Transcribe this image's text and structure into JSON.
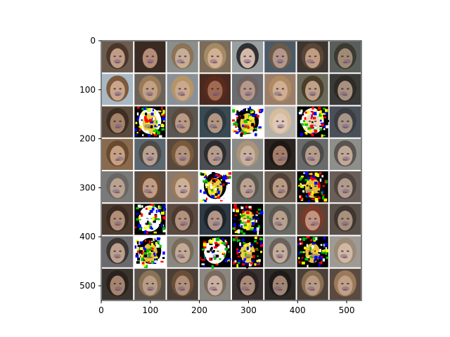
{
  "figure": {
    "grid": {
      "rows": 8,
      "cols": 8,
      "extent": [
        0,
        530
      ]
    },
    "x_ticks": [
      "0",
      "100",
      "200",
      "300",
      "400",
      "500"
    ],
    "y_ticks": [
      "0",
      "100",
      "200",
      "300",
      "400",
      "500"
    ],
    "palette": {
      "tile_dark": "#3a2a22",
      "tile_mid": "#7a6352",
      "tile_light": "#b79a82",
      "skin": "#c9a086",
      "hair_dark": "#2a1a12",
      "hair_light": "#cdb38a",
      "gap": "#ffffff",
      "axis": "#000000"
    },
    "cells": [
      [
        {
          "bg": "#6b5a4e",
          "face": "#c09b86",
          "hair": "#4a362a"
        },
        {
          "bg": "#3a2a24",
          "face": "#b58c78",
          "hair": "#3b2a21"
        },
        {
          "bg": "#8a8e8c",
          "face": "#c7ad97",
          "hair": "#8c7355"
        },
        {
          "bg": "#7b6b58",
          "face": "#d3b094",
          "hair": "#a58a66"
        },
        {
          "bg": "#9aa0a2",
          "face": "#d2b9a8",
          "hair": "#303034"
        },
        {
          "bg": "#4b5a66",
          "face": "#b3978a",
          "hair": "#6c5a48"
        },
        {
          "bg": "#3e3530",
          "face": "#bf9c82",
          "hair": "#5a4636"
        },
        {
          "bg": "#5a5e5a",
          "face": "#a08a76",
          "hair": "#3a3a32"
        }
      ],
      [
        {
          "bg": "#a8b8c4",
          "face": "#caa58c",
          "hair": "#7b5a3c"
        },
        {
          "bg": "#6a6258",
          "face": "#c2a086",
          "hair": "#9a7a58"
        },
        {
          "bg": "#8a9098",
          "face": "#caa88e",
          "hair": "#b59466"
        },
        {
          "bg": "#4a2a20",
          "face": "#a06a52",
          "hair": "#5a2a1a"
        },
        {
          "bg": "#6a6c70",
          "face": "#b6988a",
          "hair": "#6e6260"
        },
        {
          "bg": "#9a7e6a",
          "face": "#d0ae94",
          "hair": "#b08a62"
        },
        {
          "bg": "#6a6a5a",
          "face": "#bfa088",
          "hair": "#4a3e2a"
        },
        {
          "bg": "#3a3a38",
          "face": "#a89080",
          "hair": "#2e2a26"
        }
      ],
      [
        {
          "bg": "#5a4a3e",
          "face": "#a5826a",
          "hair": "#3e2e22"
        },
        {
          "bg": "#000000",
          "face": "#e8d040",
          "hair": "#ffffff",
          "noise": true
        },
        {
          "bg": "#5a5652",
          "face": "#b89a86",
          "hair": "#5a4a3c"
        },
        {
          "bg": "#3a4a52",
          "face": "#b39682",
          "hair": "#2e3a40"
        },
        {
          "bg": "#ffffff",
          "face": "#e8d040",
          "hair": "#000000",
          "noise": true
        },
        {
          "bg": "#b4b0ac",
          "face": "#e0c8b6",
          "hair": "#d4bc9c"
        },
        {
          "bg": "#000000",
          "face": "#f0d8b8",
          "hair": "#ffffff",
          "noise": true
        },
        {
          "bg": "#4a5058",
          "face": "#a8968a",
          "hair": "#3a3e42"
        }
      ],
      [
        {
          "bg": "#8a6a4e",
          "face": "#c5a084",
          "hair": "#6a4a2e"
        },
        {
          "bg": "#5a6670",
          "face": "#b8a092",
          "hair": "#4e4a44"
        },
        {
          "bg": "#5a4a3e",
          "face": "#b2927c",
          "hair": "#7a5a3a"
        },
        {
          "bg": "#4a4e52",
          "face": "#b59c8c",
          "hair": "#2e2e30"
        },
        {
          "bg": "#8a8a86",
          "face": "#c8b09e",
          "hair": "#a89478"
        },
        {
          "bg": "#2a2420",
          "face": "#a27e6a",
          "hair": "#1e1814"
        },
        {
          "bg": "#6a6a6a",
          "face": "#b49c8c",
          "hair": "#4a4a48"
        },
        {
          "bg": "#8e8e8a",
          "face": "#c0a898",
          "hair": "#5a5450"
        }
      ],
      [
        {
          "bg": "#7a7a78",
          "face": "#baa290",
          "hair": "#6a6664"
        },
        {
          "bg": "#5a4a40",
          "face": "#c09c84",
          "hair": "#6a4a32"
        },
        {
          "bg": "#8a7a6e",
          "face": "#cdb09a",
          "hair": "#9a7a5a"
        },
        {
          "bg": "#ffffff",
          "face": "#e8d040",
          "hair": "#000000",
          "noise": true
        },
        {
          "bg": "#6a6a66",
          "face": "#bca290",
          "hair": "#5a564e"
        },
        {
          "bg": "#6a5e52",
          "face": "#b89a84",
          "hair": "#4e4036"
        },
        {
          "bg": "#000000",
          "face": "#e8c040",
          "hair": "#101010",
          "noise": true
        },
        {
          "bg": "#6a5e58",
          "face": "#b09a8c",
          "hair": "#4e4440"
        }
      ],
      [
        {
          "bg": "#4a3a30",
          "face": "#b08e78",
          "hair": "#3a2a20"
        },
        {
          "bg": "#000000",
          "face": "#ffffff",
          "hair": "#ffffff",
          "noise": true
        },
        {
          "bg": "#5a4a42",
          "face": "#b2927e",
          "hair": "#4a3a30"
        },
        {
          "bg": "#2e3a44",
          "face": "#b0968a",
          "hair": "#1e242a"
        },
        {
          "bg": "#000000",
          "face": "#e8d040",
          "hair": "#000000",
          "noise": true
        },
        {
          "bg": "#6a6a64",
          "face": "#b8a08e",
          "hair": "#5a5650"
        },
        {
          "bg": "#5a4236",
          "face": "#c09480",
          "hair": "#7a3a2a"
        },
        {
          "bg": "#5a504a",
          "face": "#a8907e",
          "hair": "#3e3630"
        }
      ],
      [
        {
          "bg": "#6a6a6e",
          "face": "#bca08c",
          "hair": "#3a3634"
        },
        {
          "bg": "#ffffff",
          "face": "#e8c040",
          "hair": "#000000",
          "noise": true
        },
        {
          "bg": "#8a8680",
          "face": "#c2aa96",
          "hair": "#7a6c5a"
        },
        {
          "bg": "#000000",
          "face": "#ffffff",
          "hair": "#ffffff",
          "noise": true
        },
        {
          "bg": "#000000",
          "face": "#e8d040",
          "hair": "#000000",
          "noise": true
        },
        {
          "bg": "#8a8a88",
          "face": "#c4ac9a",
          "hair": "#6a625a"
        },
        {
          "bg": "#000000",
          "face": "#e8c040",
          "hair": "#000000",
          "noise": true
        },
        {
          "bg": "#a09a94",
          "face": "#d0b8a4",
          "hair": "#9a8a76"
        }
      ],
      [
        {
          "bg": "#3a3430",
          "face": "#a4846e",
          "hair": "#2a221c"
        },
        {
          "bg": "#5a524a",
          "face": "#b89c86",
          "hair": "#8a7256"
        },
        {
          "bg": "#4a3e36",
          "face": "#b0907a",
          "hair": "#6a4e38"
        },
        {
          "bg": "#8a8680",
          "face": "#c8b0a0",
          "hair": "#7a6a5e"
        },
        {
          "bg": "#3a3230",
          "face": "#a88a78",
          "hair": "#2a2220"
        },
        {
          "bg": "#2e2a28",
          "face": "#a08474",
          "hair": "#1e1a18"
        },
        {
          "bg": "#4a4038",
          "face": "#b89a84",
          "hair": "#8a6e52"
        },
        {
          "bg": "#5a4a40",
          "face": "#c2a088",
          "hair": "#9a7a5a"
        }
      ]
    ]
  }
}
